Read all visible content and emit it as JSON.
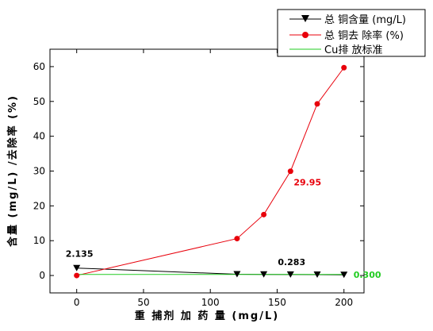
{
  "chart_data": {
    "type": "line",
    "xlabel": "重 捕剂 加 药 量 (mg/L)",
    "ylabel": "含量 (mg/L) /去除率 (%)",
    "xlim": [
      -20,
      215
    ],
    "ylim": [
      -5,
      65
    ],
    "xticks": [
      0,
      50,
      100,
      150,
      200
    ],
    "yticks": [
      0,
      10,
      20,
      30,
      40,
      50,
      60
    ],
    "legend_position": "top-right",
    "series": [
      {
        "name": "总 铜含量 (mg/L)",
        "color": "#000000",
        "marker": "triangle-down",
        "x": [
          0,
          120,
          140,
          160,
          180,
          200
        ],
        "y": [
          2.135,
          0.35,
          0.3,
          0.283,
          0.25,
          0.2
        ]
      },
      {
        "name": "总 铜去 除率 (%)",
        "color": "#e8000b",
        "marker": "circle",
        "x": [
          0,
          120,
          140,
          160,
          180,
          200
        ],
        "y": [
          0,
          10.6,
          17.5,
          29.95,
          49.3,
          59.7
        ]
      },
      {
        "name": "Cu排 放标准",
        "color": "#22cc22",
        "marker": "none",
        "x": [
          0,
          200
        ],
        "y": [
          0.3,
          0.3
        ]
      }
    ],
    "annotations": [
      {
        "text": "2.135",
        "x": 0,
        "y": 2.135,
        "color": "#000000"
      },
      {
        "text": "29.95",
        "x": 160,
        "y": 29.95,
        "color": "#e8000b"
      },
      {
        "text": "0.283",
        "x": 160,
        "y": 0.283,
        "color": "#000000"
      },
      {
        "text": "0.300",
        "x": 200,
        "y": 0.3,
        "color": "#22cc22"
      }
    ]
  }
}
